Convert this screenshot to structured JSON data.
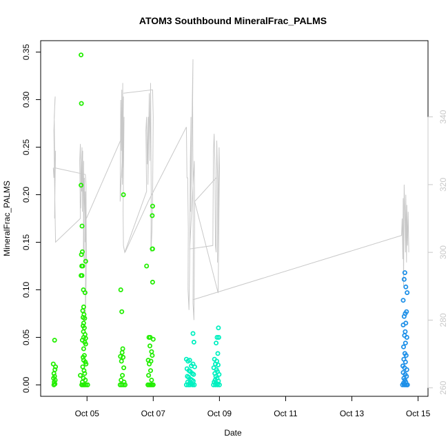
{
  "chart_data": {
    "type": "scatter",
    "title": "ATOM3 Southbound MineralFrac_PALMS",
    "xlabel": "Date",
    "ylabel": "MineralFrac_PALMS",
    "x_ticks": [
      "Oct 05",
      "Oct 07",
      "Oct 09",
      "Oct 11",
      "Oct 13",
      "Oct 15"
    ],
    "x_tick_values": [
      5,
      7,
      9,
      11,
      13,
      15
    ],
    "xlim": [
      3.6,
      15.3
    ],
    "y_ticks": [
      "0.00",
      "0.05",
      "0.10",
      "0.15",
      "0.20",
      "0.25",
      "0.30",
      "0.35"
    ],
    "y_tick_values": [
      0,
      0.05,
      0.1,
      0.15,
      0.2,
      0.25,
      0.3,
      0.35
    ],
    "ylim": [
      -0.012,
      0.362
    ],
    "y2_ticks": [
      "260",
      "280",
      "300",
      "320",
      "340"
    ],
    "y2_tick_values": [
      260,
      280,
      300,
      320,
      340
    ],
    "y2lim": [
      257.5,
      362.5
    ],
    "grid": false,
    "legend": "none",
    "colors": {
      "point_green": "#22ee00",
      "point_cyan": "#00f0c0",
      "point_blue": "#1e90e8",
      "line_gray": "#c8c8c8",
      "axis": "#000000",
      "right_axis": "#c8c8c8"
    },
    "scatter_groups": [
      {
        "color": "#22ee00",
        "points": [
          [
            4.02,
            0.047
          ],
          [
            3.98,
            0.022
          ],
          [
            4.05,
            0.019
          ],
          [
            4.03,
            0.016
          ],
          [
            4.0,
            0.012
          ],
          [
            4.02,
            0.009
          ],
          [
            3.99,
            0.007
          ],
          [
            4.04,
            0.005
          ],
          [
            4.01,
            0.003
          ],
          [
            4.03,
            0.001
          ],
          [
            4.0,
            0.0
          ]
        ]
      },
      {
        "color": "#22ee00",
        "points": [
          [
            4.82,
            0.347
          ],
          [
            4.83,
            0.296
          ],
          [
            4.82,
            0.21
          ],
          [
            4.85,
            0.167
          ],
          [
            4.86,
            0.14
          ],
          [
            4.83,
            0.137
          ],
          [
            4.96,
            0.13
          ],
          [
            4.87,
            0.125
          ],
          [
            4.84,
            0.125
          ],
          [
            4.85,
            0.115
          ],
          [
            4.82,
            0.115
          ],
          [
            4.89,
            0.1
          ],
          [
            4.94,
            0.097
          ],
          [
            4.9,
            0.082
          ],
          [
            4.87,
            0.078
          ],
          [
            4.91,
            0.074
          ],
          [
            4.88,
            0.071
          ],
          [
            4.93,
            0.07
          ],
          [
            4.9,
            0.065
          ],
          [
            4.88,
            0.062
          ],
          [
            4.92,
            0.06
          ],
          [
            4.89,
            0.056
          ],
          [
            4.94,
            0.053
          ],
          [
            4.9,
            0.05
          ],
          [
            4.96,
            0.049
          ],
          [
            4.86,
            0.047
          ],
          [
            4.93,
            0.045
          ],
          [
            4.96,
            0.043
          ],
          [
            4.9,
            0.038
          ],
          [
            4.92,
            0.031
          ],
          [
            4.88,
            0.029
          ],
          [
            4.9,
            0.026
          ],
          [
            4.95,
            0.024
          ],
          [
            4.97,
            0.022
          ],
          [
            4.87,
            0.019
          ],
          [
            4.91,
            0.015
          ],
          [
            4.93,
            0.012
          ],
          [
            4.8,
            0.01
          ],
          [
            4.89,
            0.007
          ],
          [
            4.95,
            0.005
          ],
          [
            4.86,
            0.003
          ],
          [
            4.84,
            0.0
          ],
          [
            4.88,
            0.0
          ],
          [
            4.92,
            0.0
          ],
          [
            4.97,
            0.0
          ],
          [
            5.02,
            0.0
          ]
        ]
      },
      {
        "color": "#22ee00",
        "points": [
          [
            6.1,
            0.2
          ],
          [
            6.02,
            0.1
          ],
          [
            6.05,
            0.077
          ],
          [
            6.08,
            0.038
          ],
          [
            6.06,
            0.034
          ],
          [
            6.01,
            0.03
          ],
          [
            6.09,
            0.029
          ],
          [
            6.04,
            0.025
          ],
          [
            6.11,
            0.018
          ],
          [
            6.07,
            0.01
          ],
          [
            6.03,
            0.005
          ],
          [
            6.12,
            0.003
          ],
          [
            6.0,
            0.0
          ],
          [
            6.05,
            0.0
          ],
          [
            6.1,
            0.0
          ],
          [
            6.15,
            0.0
          ]
        ]
      },
      {
        "color": "#22ee00",
        "points": [
          [
            6.98,
            0.188
          ],
          [
            6.97,
            0.178
          ],
          [
            6.97,
            0.143
          ],
          [
            6.98,
            0.143
          ],
          [
            6.8,
            0.125
          ],
          [
            6.98,
            0.108
          ],
          [
            6.87,
            0.05
          ],
          [
            6.91,
            0.05
          ],
          [
            7.0,
            0.048
          ],
          [
            6.9,
            0.041
          ],
          [
            6.95,
            0.035
          ],
          [
            6.97,
            0.031
          ],
          [
            6.85,
            0.026
          ],
          [
            6.93,
            0.025
          ],
          [
            6.88,
            0.022
          ],
          [
            6.92,
            0.015
          ],
          [
            6.86,
            0.01
          ],
          [
            6.95,
            0.005
          ],
          [
            6.84,
            0.0
          ],
          [
            6.88,
            0.0
          ],
          [
            6.92,
            0.0
          ],
          [
            6.96,
            0.0
          ],
          [
            7.0,
            0.0
          ]
        ]
      },
      {
        "color": "#00f0c0",
        "points": [
          [
            8.2,
            0.054
          ],
          [
            8.23,
            0.045
          ],
          [
            8.0,
            0.027
          ],
          [
            8.05,
            0.025
          ],
          [
            8.1,
            0.026
          ],
          [
            8.15,
            0.02
          ],
          [
            8.2,
            0.022
          ],
          [
            8.25,
            0.019
          ],
          [
            8.02,
            0.017
          ],
          [
            8.08,
            0.015
          ],
          [
            8.12,
            0.014
          ],
          [
            8.18,
            0.012
          ],
          [
            8.22,
            0.011
          ],
          [
            8.03,
            0.009
          ],
          [
            8.07,
            0.008
          ],
          [
            8.13,
            0.006
          ],
          [
            8.17,
            0.005
          ],
          [
            8.21,
            0.004
          ],
          [
            8.04,
            0.003
          ],
          [
            8.1,
            0.002
          ],
          [
            8.16,
            0.001
          ],
          [
            8.0,
            0.0
          ],
          [
            8.06,
            0.0
          ],
          [
            8.11,
            0.0
          ],
          [
            8.19,
            0.0
          ],
          [
            8.24,
            0.0
          ]
        ]
      },
      {
        "color": "#00f0c0",
        "points": [
          [
            8.97,
            0.06
          ],
          [
            8.93,
            0.05
          ],
          [
            8.98,
            0.05
          ],
          [
            8.9,
            0.044
          ],
          [
            8.95,
            0.033
          ],
          [
            8.85,
            0.027
          ],
          [
            8.92,
            0.025
          ],
          [
            8.88,
            0.022
          ],
          [
            8.96,
            0.021
          ],
          [
            8.83,
            0.018
          ],
          [
            8.91,
            0.016
          ],
          [
            8.94,
            0.014
          ],
          [
            8.86,
            0.012
          ],
          [
            8.99,
            0.011
          ],
          [
            8.89,
            0.009
          ],
          [
            8.93,
            0.007
          ],
          [
            8.87,
            0.005
          ],
          [
            8.97,
            0.004
          ],
          [
            8.84,
            0.003
          ],
          [
            8.9,
            0.002
          ],
          [
            8.95,
            0.001
          ],
          [
            8.82,
            0.0
          ],
          [
            8.88,
            0.0
          ],
          [
            8.94,
            0.0
          ],
          [
            9.0,
            0.0
          ]
        ]
      },
      {
        "color": "#1e90e8",
        "points": [
          [
            14.6,
            0.118
          ],
          [
            14.58,
            0.111
          ],
          [
            14.63,
            0.103
          ],
          [
            14.67,
            0.097
          ],
          [
            14.55,
            0.089
          ],
          [
            14.61,
            0.075
          ],
          [
            14.65,
            0.077
          ],
          [
            14.58,
            0.072
          ],
          [
            14.63,
            0.065
          ],
          [
            14.55,
            0.063
          ],
          [
            14.61,
            0.056
          ],
          [
            14.59,
            0.052
          ],
          [
            14.66,
            0.05
          ],
          [
            14.62,
            0.044
          ],
          [
            14.56,
            0.04
          ],
          [
            14.6,
            0.033
          ],
          [
            14.64,
            0.031
          ],
          [
            14.57,
            0.027
          ],
          [
            14.62,
            0.024
          ],
          [
            14.54,
            0.02
          ],
          [
            14.59,
            0.018
          ],
          [
            14.66,
            0.016
          ],
          [
            14.55,
            0.013
          ],
          [
            14.61,
            0.011
          ],
          [
            14.65,
            0.009
          ],
          [
            14.57,
            0.007
          ],
          [
            14.6,
            0.005
          ],
          [
            14.63,
            0.003
          ],
          [
            14.56,
            0.002
          ],
          [
            14.59,
            0.001
          ],
          [
            14.53,
            0.0
          ],
          [
            14.58,
            0.0
          ],
          [
            14.62,
            0.0
          ],
          [
            14.66,
            0.0
          ],
          [
            14.68,
            0.0
          ]
        ]
      }
    ],
    "line_segments": [
      [
        [
          3.98,
          325
        ],
        [
          4.0,
          322
        ],
        [
          4.02,
          327
        ],
        [
          4.04,
          324
        ],
        [
          4.05,
          330
        ],
        [
          4.03,
          318
        ],
        [
          4.02,
          310
        ],
        [
          4.03,
          322
        ],
        [
          4.01,
          340
        ],
        [
          4.04,
          346
        ],
        [
          4.03,
          345
        ],
        [
          4.0,
          336
        ],
        [
          4.02,
          320
        ],
        [
          4.05,
          303
        ],
        [
          4.8,
          310
        ],
        [
          4.78,
          327
        ],
        [
          4.8,
          332
        ],
        [
          4.82,
          318
        ],
        [
          4.81,
          313
        ],
        [
          4.85,
          331
        ],
        [
          4.84,
          318
        ],
        [
          4.87,
          330
        ],
        [
          4.86,
          312
        ],
        [
          4.9,
          327
        ],
        [
          4.89,
          301
        ],
        [
          4.92,
          297
        ],
        [
          4.9,
          310
        ],
        [
          4.92,
          322
        ],
        [
          4.94,
          303
        ],
        [
          4.95,
          318
        ],
        [
          4.96,
          300
        ],
        [
          4.95,
          280
        ],
        [
          4.97,
          290
        ],
        [
          4.98,
          300
        ],
        [
          4.97,
          320
        ],
        [
          4.95,
          323
        ],
        [
          4.0,
          325
        ]
      ],
      [
        [
          4.98,
          310
        ],
        [
          6.1,
          335
        ],
        [
          6.0,
          315
        ],
        [
          6.02,
          345
        ],
        [
          6.04,
          330
        ],
        [
          6.05,
          348
        ],
        [
          6.06,
          322
        ],
        [
          6.08,
          350
        ],
        [
          6.07,
          320
        ],
        [
          6.1,
          346
        ],
        [
          6.08,
          325
        ],
        [
          6.12,
          340
        ],
        [
          6.09,
          312
        ],
        [
          6.1,
          302
        ],
        [
          6.14,
          300
        ],
        [
          6.8,
          318
        ],
        [
          6.78,
          336
        ],
        [
          6.8,
          340
        ],
        [
          6.82,
          326
        ],
        [
          6.85,
          340
        ],
        [
          6.84,
          320
        ],
        [
          6.88,
          347
        ],
        [
          6.9,
          327
        ],
        [
          6.92,
          350
        ],
        [
          6.94,
          318
        ],
        [
          6.93,
          300
        ],
        [
          6.96,
          306
        ],
        [
          6.98,
          316
        ],
        [
          7.0,
          340
        ],
        [
          6.98,
          348
        ],
        [
          6.1,
          347
        ]
      ],
      [
        [
          6.15,
          300
        ],
        [
          6.85,
          315
        ],
        [
          8.0,
          337
        ],
        [
          8.02,
          322
        ],
        [
          8.04,
          322
        ],
        [
          8.06,
          307
        ],
        [
          8.05,
          289
        ],
        [
          8.08,
          283
        ],
        [
          8.1,
          297
        ],
        [
          8.12,
          327
        ],
        [
          8.14,
          340
        ],
        [
          8.13,
          312
        ],
        [
          8.16,
          327
        ],
        [
          8.18,
          345
        ],
        [
          8.2,
          357
        ],
        [
          8.19,
          345
        ],
        [
          8.21,
          300
        ],
        [
          8.2,
          285
        ],
        [
          8.23,
          280
        ],
        [
          8.25,
          310
        ],
        [
          8.24,
          327
        ],
        [
          8.1,
          301
        ],
        [
          8.8,
          302
        ],
        [
          8.82,
          330
        ],
        [
          8.84,
          335
        ],
        [
          8.86,
          327
        ],
        [
          8.88,
          302
        ],
        [
          8.9,
          300
        ],
        [
          8.92,
          333
        ],
        [
          8.95,
          320
        ],
        [
          8.94,
          297
        ],
        [
          8.97,
          317
        ],
        [
          8.99,
          331
        ],
        [
          9.0,
          325
        ],
        [
          8.98,
          305
        ],
        [
          8.96,
          288
        ],
        [
          8.25,
          315
        ],
        [
          8.9,
          322
        ]
      ],
      [
        [
          8.2,
          286
        ],
        [
          14.5,
          305
        ],
        [
          14.52,
          310
        ],
        [
          14.54,
          298
        ],
        [
          14.55,
          316
        ],
        [
          14.56,
          290
        ],
        [
          14.58,
          320
        ],
        [
          14.6,
          312
        ],
        [
          14.62,
          300
        ],
        [
          14.63,
          317
        ],
        [
          14.65,
          297
        ],
        [
          14.66,
          314
        ],
        [
          14.68,
          302
        ],
        [
          14.7,
          312
        ],
        [
          14.72,
          300
        ]
      ]
    ]
  }
}
